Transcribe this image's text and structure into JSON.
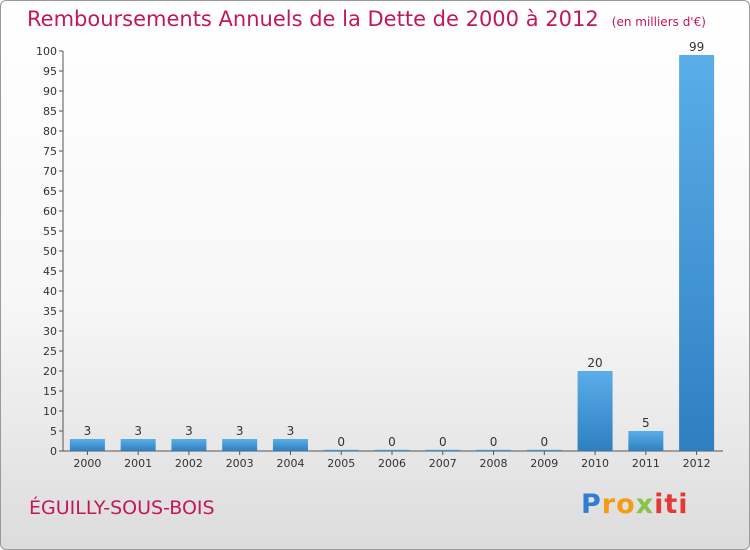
{
  "title": "Remboursements Annuels de la Dette de 2000 à 2012",
  "unit_note": "(en milliers d'€)",
  "commune": "ÉGUILLY-SOUS-BOIS",
  "logo": {
    "text": "Proxiti"
  },
  "colors": {
    "title": "#c2185b",
    "bar_light": "#5aaee8",
    "bar_dark": "#2e7fc0",
    "axis": "#555555",
    "grid": "#d9d9d9"
  },
  "chart_data": {
    "type": "bar",
    "categories": [
      "2000",
      "2001",
      "2002",
      "2003",
      "2004",
      "2005",
      "2006",
      "2007",
      "2008",
      "2009",
      "2010",
      "2011",
      "2012"
    ],
    "values": [
      3,
      3,
      3,
      3,
      3,
      0,
      0,
      0,
      0,
      0,
      20,
      5,
      99
    ],
    "data_labels": [
      "3",
      "3",
      "3",
      "3",
      "3",
      "0",
      "0",
      "0",
      "0",
      "0",
      "20",
      "5",
      "99"
    ],
    "ylim": [
      0,
      100
    ],
    "yticks": [
      0,
      5,
      10,
      15,
      20,
      25,
      30,
      35,
      40,
      45,
      50,
      55,
      60,
      65,
      70,
      75,
      80,
      85,
      90,
      95,
      100
    ],
    "grid": false,
    "title": "Remboursements Annuels de la Dette de 2000 à 2012",
    "xlabel": "",
    "ylabel": ""
  }
}
